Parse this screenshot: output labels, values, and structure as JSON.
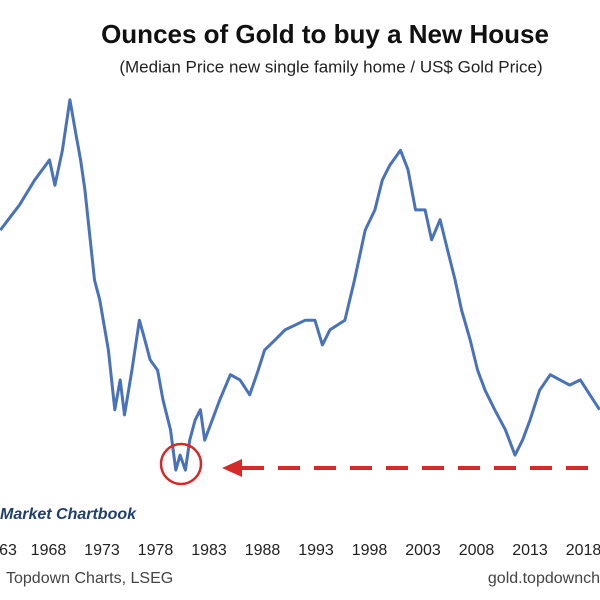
{
  "chart_data": {
    "type": "line",
    "title": "Ounces of Gold to buy a New House",
    "subtitle": "(Median Price new single family home / US$ Gold Price)",
    "branding": "Market Chartbook",
    "source": "Topdown Charts, LSEG",
    "website": "gold.topdownch",
    "x": [
      1963.5,
      1965.3,
      1966.7,
      1968.1,
      1968.6,
      1969.3,
      1970.0,
      1970.5,
      1971.0,
      1971.4,
      1972.3,
      1972.8,
      1973.6,
      1974.2,
      1974.7,
      1975.1,
      1975.8,
      1976.5,
      1977.0,
      1977.5,
      1978.2,
      1978.7,
      1979.4,
      1979.9,
      1980.3,
      1980.8,
      1981.2,
      1981.7,
      1982.2,
      1982.6,
      1983.3,
      1984.0,
      1985.0,
      1985.9,
      1986.8,
      1987.6,
      1988.2,
      1989.2,
      1990.1,
      1991.1,
      1992.0,
      1992.9,
      1993.6,
      1994.3,
      1995.7,
      1996.6,
      1997.6,
      1998.5,
      1999.2,
      1999.9,
      2000.9,
      2001.6,
      2002.3,
      2003.2,
      2003.8,
      2004.6,
      2005.3,
      2006.0,
      2006.6,
      2007.4,
      2008.1,
      2008.8,
      2009.7,
      2010.7,
      2011.6,
      2012.3,
      2013.0,
      2013.9,
      2014.9,
      2015.8,
      2016.7,
      2017.7,
      2018.6,
      2019.5
    ],
    "series": [
      {
        "color": "#4a72b8",
        "values": [
          467,
          506,
          544,
          575,
          536,
          590,
          668,
          621,
          575,
          529,
          390,
          359,
          282,
          190,
          236,
          182,
          251,
          328,
          298,
          267,
          251,
          205,
          159,
          97,
          120,
          97,
          143,
          174,
          190,
          143,
          174,
          205,
          244,
          236,
          213,
          251,
          282,
          298,
          313,
          321,
          328,
          328,
          290,
          313,
          328,
          390,
          467,
          498,
          544,
          567,
          590,
          560,
          498,
          498,
          452,
          483,
          436,
          390,
          344,
          298,
          251,
          220,
          190,
          159,
          120,
          143,
          174,
          220,
          244,
          236,
          228,
          236,
          213,
          190
        ]
      }
    ],
    "xlim": [
      1963.47,
      2019.54
    ],
    "ylim": [
      20,
      760
    ],
    "xticks": [
      {
        "value": 1963,
        "label": "63"
      },
      1968,
      1973,
      1978,
      1983,
      1988,
      1993,
      1998,
      2003,
      2008,
      2013,
      2018
    ]
  }
}
